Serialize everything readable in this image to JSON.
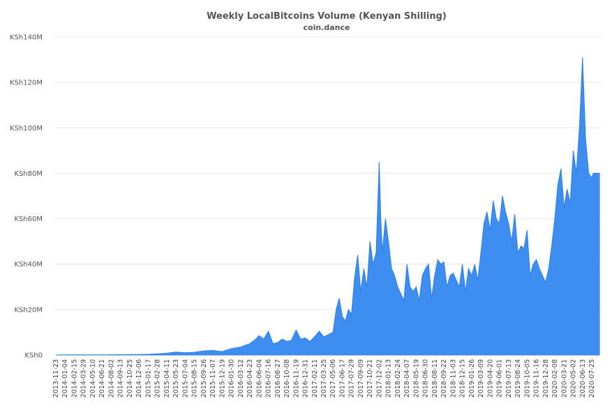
{
  "chart_data": {
    "type": "area",
    "title": "Weekly LocalBitcoins Volume (Kenyan Shilling)",
    "subtitle": "coin.dance",
    "xlabel": "",
    "ylabel": "",
    "ylim": [
      0,
      140000000
    ],
    "y_ticks": [
      {
        "value": 0,
        "label": "KSh0"
      },
      {
        "value": 20000000,
        "label": "KSh20M"
      },
      {
        "value": 40000000,
        "label": "KSh40M"
      },
      {
        "value": 60000000,
        "label": "KSh60M"
      },
      {
        "value": 80000000,
        "label": "KSh80M"
      },
      {
        "value": 100000000,
        "label": "KSh100M"
      },
      {
        "value": 120000000,
        "label": "KSh120M"
      },
      {
        "value": 140000000,
        "label": "KSh140M"
      }
    ],
    "x_ticks": [
      "2013-11-23",
      "2014-01-04",
      "2014-02-15",
      "2014-03-29",
      "2014-05-10",
      "2014-06-21",
      "2014-08-02",
      "2014-09-13",
      "2014-10-25",
      "2014-12-06",
      "2015-01-17",
      "2015-02-28",
      "2015-04-11",
      "2015-05-23",
      "2015-07-04",
      "2015-08-15",
      "2015-09-26",
      "2015-11-07",
      "2015-12-19",
      "2016-01-30",
      "2016-03-12",
      "2016-04-23",
      "2016-06-04",
      "2016-07-16",
      "2016-08-27",
      "2016-10-08",
      "2016-11-19",
      "2016-12-31",
      "2017-02-11",
      "2017-03-25",
      "2017-05-06",
      "2017-06-17",
      "2017-07-29",
      "2017-09-09",
      "2017-10-21",
      "2017-12-02",
      "2018-01-13",
      "2018-02-24",
      "2018-04-07",
      "2018-05-19",
      "2018-06-30",
      "2018-08-11",
      "2018-09-22",
      "2018-11-03",
      "2018-12-15",
      "2019-01-26",
      "2019-03-09",
      "2019-04-20",
      "2019-06-01",
      "2019-07-13",
      "2019-08-24",
      "2019-10-05",
      "2019-11-16",
      "2019-12-28",
      "2020-02-08",
      "2020-03-21",
      "2020-05-02",
      "2020-06-13",
      "2020-07-25"
    ],
    "grid": true,
    "legend": "none",
    "color": "#3d8ef0",
    "series": [
      {
        "x": [
          "2013-11-23",
          "2014-01-04",
          "2014-06-21",
          "2014-12-06",
          "2015-01-17",
          "2015-02-28",
          "2015-04-11",
          "2015-05-23",
          "2015-07-04",
          "2015-08-15",
          "2015-09-26",
          "2015-11-07",
          "2015-12-19",
          "2016-01-30",
          "2016-03-12",
          "2016-04-23",
          "2016-05-14",
          "2016-06-04",
          "2016-06-25",
          "2016-07-16",
          "2016-08-06",
          "2016-08-27",
          "2016-09-17",
          "2016-10-08",
          "2016-10-29",
          "2016-11-19",
          "2016-12-10",
          "2016-12-31",
          "2017-01-21",
          "2017-02-11",
          "2017-03-04",
          "2017-03-25",
          "2017-04-15",
          "2017-05-06",
          "2017-05-20",
          "2017-06-03",
          "2017-06-17",
          "2017-07-01",
          "2017-07-15",
          "2017-07-29",
          "2017-08-12",
          "2017-08-26",
          "2017-09-09",
          "2017-09-23",
          "2017-10-07",
          "2017-10-21",
          "2017-11-04",
          "2017-11-18",
          "2017-12-02",
          "2017-12-09",
          "2017-12-16",
          "2017-12-30",
          "2018-01-13",
          "2018-01-27",
          "2018-02-10",
          "2018-02-24",
          "2018-03-10",
          "2018-03-24",
          "2018-04-07",
          "2018-04-21",
          "2018-05-05",
          "2018-05-19",
          "2018-06-02",
          "2018-06-16",
          "2018-06-30",
          "2018-07-14",
          "2018-07-28",
          "2018-08-11",
          "2018-08-25",
          "2018-09-08",
          "2018-09-22",
          "2018-10-06",
          "2018-10-20",
          "2018-11-03",
          "2018-11-17",
          "2018-12-01",
          "2018-12-15",
          "2018-12-29",
          "2019-01-12",
          "2019-01-26",
          "2019-02-09",
          "2019-02-23",
          "2019-03-09",
          "2019-03-23",
          "2019-04-06",
          "2019-04-20",
          "2019-05-04",
          "2019-05-18",
          "2019-06-01",
          "2019-06-15",
          "2019-06-29",
          "2019-07-13",
          "2019-07-27",
          "2019-08-10",
          "2019-08-24",
          "2019-09-07",
          "2019-09-21",
          "2019-10-05",
          "2019-10-19",
          "2019-11-02",
          "2019-11-16",
          "2019-11-30",
          "2019-12-14",
          "2019-12-28",
          "2020-01-11",
          "2020-01-25",
          "2020-02-08",
          "2020-02-22",
          "2020-03-07",
          "2020-03-21",
          "2020-04-04",
          "2020-04-18",
          "2020-05-02",
          "2020-05-16",
          "2020-05-30",
          "2020-06-13",
          "2020-06-27",
          "2020-07-11",
          "2020-07-25",
          "2020-08-01",
          "2020-08-08",
          "2020-08-15",
          "2020-08-22",
          "2020-08-29"
        ],
        "values": [
          0,
          100000,
          100000,
          200000,
          300000,
          500000,
          800000,
          1300000,
          1000000,
          1200000,
          1800000,
          2000000,
          1500000,
          2800000,
          3500000,
          5000000,
          6500000,
          8500000,
          7000000,
          10500000,
          5000000,
          5500000,
          7000000,
          6000000,
          6500000,
          11000000,
          7000000,
          7500000,
          6000000,
          8000000,
          10500000,
          8000000,
          9000000,
          10000000,
          20000000,
          25000000,
          17000000,
          15000000,
          20000000,
          18000000,
          34000000,
          44000000,
          28000000,
          38000000,
          30000000,
          50000000,
          40000000,
          45000000,
          85000000,
          60000000,
          45000000,
          60000000,
          50000000,
          38000000,
          35000000,
          30000000,
          27000000,
          24000000,
          40000000,
          30000000,
          28000000,
          30000000,
          24000000,
          35000000,
          38000000,
          40000000,
          25000000,
          35000000,
          42000000,
          40000000,
          41000000,
          30000000,
          35000000,
          36000000,
          33000000,
          30000000,
          40000000,
          28000000,
          38000000,
          35000000,
          40000000,
          33000000,
          45000000,
          58000000,
          63000000,
          55000000,
          68000000,
          60000000,
          58000000,
          70000000,
          63000000,
          58000000,
          50000000,
          62000000,
          45000000,
          48000000,
          47000000,
          55000000,
          35000000,
          40000000,
          42000000,
          38000000,
          35000000,
          32000000,
          38000000,
          48000000,
          60000000,
          75000000,
          82000000,
          65000000,
          73000000,
          67000000,
          90000000,
          80000000,
          100000000,
          131000000,
          95000000,
          80000000,
          78000000,
          80000000,
          80000000,
          80000000,
          80000000,
          80000000
        ]
      }
    ]
  }
}
